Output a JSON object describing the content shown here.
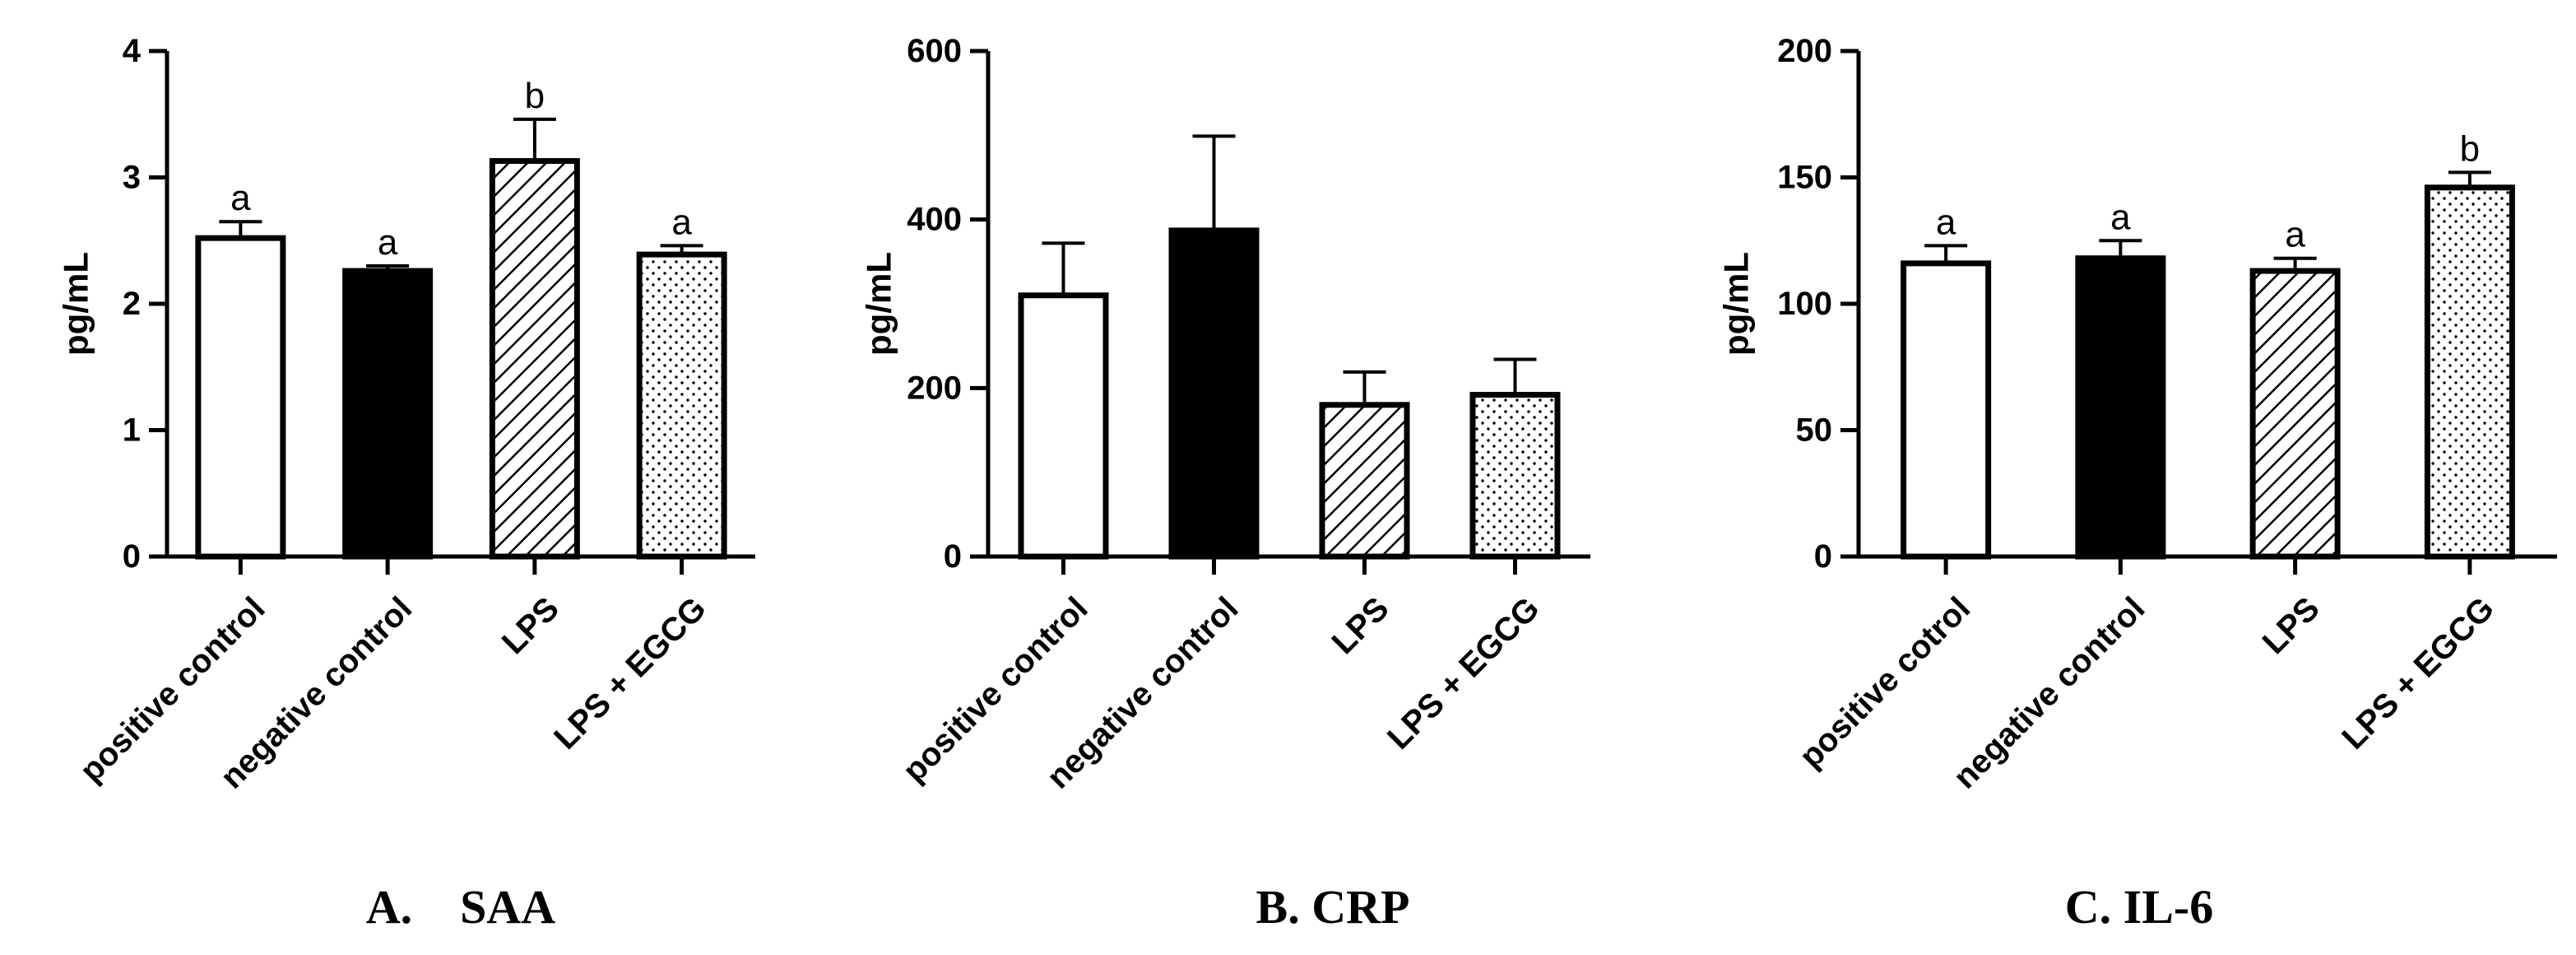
{
  "chart_data": [
    {
      "type": "bar",
      "caption": "A.    SAA",
      "ylabel": "pg/mL",
      "ylim": [
        0,
        4
      ],
      "yticks": [
        0,
        1,
        2,
        3,
        4
      ],
      "categories": [
        "positive control",
        "negative control",
        "LPS",
        "LPS + EGCG"
      ],
      "values": [
        2.52,
        2.26,
        3.13,
        2.39
      ],
      "errors": [
        0.13,
        0.04,
        0.33,
        0.07
      ],
      "significance": [
        "a",
        "a",
        "b",
        "a"
      ],
      "fills": [
        "white",
        "black",
        "hatch",
        "dots"
      ]
    },
    {
      "type": "bar",
      "caption": "B. CRP",
      "ylabel": "pg/mL",
      "ylim": [
        0,
        600
      ],
      "yticks": [
        0,
        200,
        400,
        600
      ],
      "categories": [
        "positive control",
        "negative control",
        "LPS",
        "LPS + EGCG"
      ],
      "values": [
        310,
        387,
        180,
        192
      ],
      "errors": [
        62,
        112,
        39,
        42
      ],
      "significance": [
        "",
        "",
        "",
        ""
      ],
      "fills": [
        "white",
        "black",
        "hatch",
        "dots"
      ]
    },
    {
      "type": "bar",
      "caption": "C. IL-6",
      "ylabel": "pg/mL",
      "ylim": [
        0,
        200
      ],
      "yticks": [
        0,
        50,
        100,
        150,
        200
      ],
      "categories": [
        "positive cotrol",
        "negative control",
        "LPS",
        "LPS + EGCG"
      ],
      "values": [
        116,
        118,
        113,
        146
      ],
      "errors": [
        7,
        7,
        5,
        6
      ],
      "significance": [
        "a",
        "a",
        "a",
        "b"
      ],
      "fills": [
        "white",
        "black",
        "hatch",
        "dots"
      ]
    }
  ],
  "colors": {
    "ink": "#000000",
    "background": "#ffffff"
  }
}
